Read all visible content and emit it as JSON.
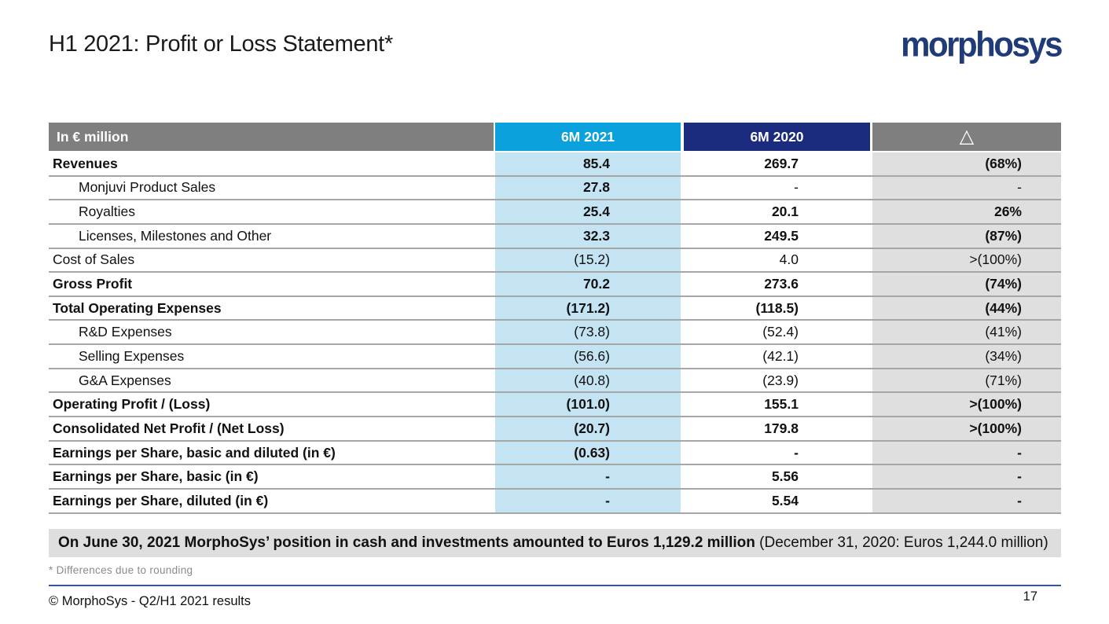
{
  "slide": {
    "title": "H1 2021: Profit or Loss Statement*",
    "logo_text": "morphosys",
    "footnote": "* Differences due to rounding",
    "footer_left": "© MorphoSys - Q2/H1 2021 results",
    "page_number": "17"
  },
  "note": {
    "bold": "On June 30, 2021 MorphoSys’ position in cash and investments amounted to Euros 1,129.2 million",
    "regular": " (December 31, 2020: Euros 1,244.0 million)"
  },
  "colors": {
    "accent_cyan": "#0AA1DC",
    "accent_navy": "#1B2C7E",
    "header_gray": "#7F7F7F",
    "cell_light_blue": "#C5E4F3",
    "cell_light_gray": "#DFDFDF",
    "note_bg": "#DEDEDE",
    "row_line_gray": "#A6A6A6",
    "footer_line_blue": "#37549B",
    "logo_navy": "#1F3C78"
  },
  "table": {
    "header": {
      "label": "In € million",
      "col2021": "6M 2021",
      "col2020": "6M 2020",
      "delta": "△"
    },
    "rows": [
      {
        "label": "Revenues",
        "indent": false,
        "b_label": true,
        "v2021": "85.4",
        "b_2021": true,
        "v2020": "269.7",
        "b_2020": true,
        "delta": "(68%)",
        "b_delta": true
      },
      {
        "label": "Monjuvi Product Sales",
        "indent": true,
        "b_label": false,
        "v2021": "27.8",
        "b_2021": true,
        "v2020": "-",
        "b_2020": false,
        "delta": "-",
        "b_delta": false
      },
      {
        "label": "Royalties",
        "indent": true,
        "b_label": false,
        "v2021": "25.4",
        "b_2021": true,
        "v2020": "20.1",
        "b_2020": true,
        "delta": "26%",
        "b_delta": true
      },
      {
        "label": "Licenses, Milestones and Other",
        "indent": true,
        "b_label": false,
        "v2021": "32.3",
        "b_2021": true,
        "v2020": "249.5",
        "b_2020": true,
        "delta": "(87%)",
        "b_delta": true
      },
      {
        "label": "Cost of Sales",
        "indent": false,
        "b_label": false,
        "v2021": "(15.2)",
        "b_2021": false,
        "v2020": "4.0",
        "b_2020": false,
        "delta": ">(100%)",
        "b_delta": false
      },
      {
        "label": "Gross Profit",
        "indent": false,
        "b_label": true,
        "v2021": "70.2",
        "b_2021": true,
        "v2020": "273.6",
        "b_2020": true,
        "delta": "(74%)",
        "b_delta": true
      },
      {
        "label": "Total Operating Expenses",
        "indent": false,
        "b_label": true,
        "v2021": "(171.2)",
        "b_2021": true,
        "v2020": "(118.5)",
        "b_2020": true,
        "delta": "(44%)",
        "b_delta": true
      },
      {
        "label": "R&D Expenses",
        "indent": true,
        "b_label": false,
        "v2021": "(73.8)",
        "b_2021": false,
        "v2020": "(52.4)",
        "b_2020": false,
        "delta": "(41%)",
        "b_delta": false
      },
      {
        "label": "Selling Expenses",
        "indent": true,
        "b_label": false,
        "v2021": "(56.6)",
        "b_2021": false,
        "v2020": "(42.1)",
        "b_2020": false,
        "delta": "(34%)",
        "b_delta": false
      },
      {
        "label": "G&A Expenses",
        "indent": true,
        "b_label": false,
        "v2021": "(40.8)",
        "b_2021": false,
        "v2020": "(23.9)",
        "b_2020": false,
        "delta": "(71%)",
        "b_delta": false
      },
      {
        "label": "Operating Profit / (Loss)",
        "indent": false,
        "b_label": true,
        "v2021": "(101.0)",
        "b_2021": true,
        "v2020": "155.1",
        "b_2020": true,
        "delta": ">(100%)",
        "b_delta": true
      },
      {
        "label": "Consolidated Net Profit / (Net Loss)",
        "indent": false,
        "b_label": true,
        "v2021": "(20.7)",
        "b_2021": true,
        "v2020": "179.8",
        "b_2020": true,
        "delta": ">(100%)",
        "b_delta": true
      },
      {
        "label": "Earnings per Share, basic and diluted (in €)",
        "indent": false,
        "b_label": true,
        "v2021": "(0.63)",
        "b_2021": true,
        "v2020": "-",
        "b_2020": true,
        "delta": "-",
        "b_delta": true
      },
      {
        "label": "Earnings per Share, basic (in €)",
        "indent": false,
        "b_label": true,
        "v2021": "-",
        "b_2021": true,
        "v2020": "5.56",
        "b_2020": true,
        "delta": "-",
        "b_delta": true
      },
      {
        "label": "Earnings per Share, diluted (in €)",
        "indent": false,
        "b_label": true,
        "v2021": "-",
        "b_2021": true,
        "v2020": "5.54",
        "b_2020": true,
        "delta": "-",
        "b_delta": true
      }
    ]
  }
}
